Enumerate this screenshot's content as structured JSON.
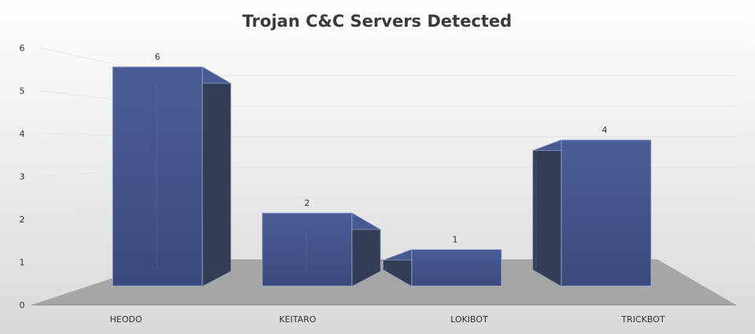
{
  "chart_data": {
    "type": "bar",
    "title": "Trojan C&C Servers Detected",
    "categories": [
      "HEODO",
      "KEITARO",
      "LOKIBOT",
      "TRICKBOT"
    ],
    "values": [
      6,
      2,
      1,
      4
    ],
    "data_labels": [
      "6",
      "2",
      "1",
      "4"
    ],
    "ylim": [
      0,
      6
    ],
    "yticks": [
      "0",
      "1",
      "2",
      "3",
      "4",
      "5",
      "6"
    ],
    "xlabel": "",
    "ylabel": "",
    "grid": true,
    "legend": "none",
    "style": "3d-column",
    "colors": {
      "bar_front": "#3f5187",
      "bar_side_dark": "#333d55",
      "bar_top": "#475a92",
      "floor": "#a6a6a6",
      "background_top": "#ffffff",
      "background_bottom": "#d9d9d9"
    }
  }
}
